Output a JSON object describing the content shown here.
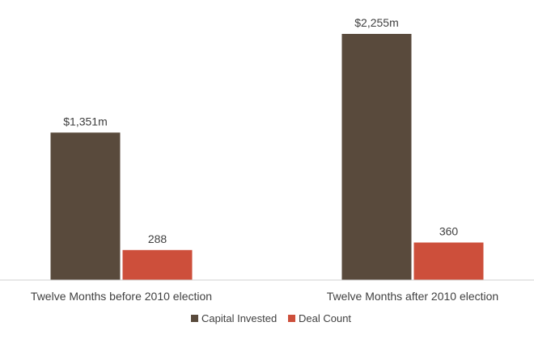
{
  "chart_data": {
    "type": "bar",
    "title": "",
    "xlabel": "",
    "ylabel": "",
    "categories": [
      "Twelve Months before 2010 election",
      "Twelve Months after 2010 election"
    ],
    "series": [
      {
        "name": "Capital Invested",
        "color": "#594a3c",
        "values": [
          1351,
          2255
        ],
        "labels": [
          "$1,351m",
          "$2,255m"
        ]
      },
      {
        "name": "Deal Count",
        "color": "#cd4f3b",
        "values": [
          288,
          360
        ],
        "labels": [
          "288",
          "360"
        ]
      }
    ],
    "y_axis_visible": false,
    "grid": false,
    "legend_position": "bottom"
  }
}
